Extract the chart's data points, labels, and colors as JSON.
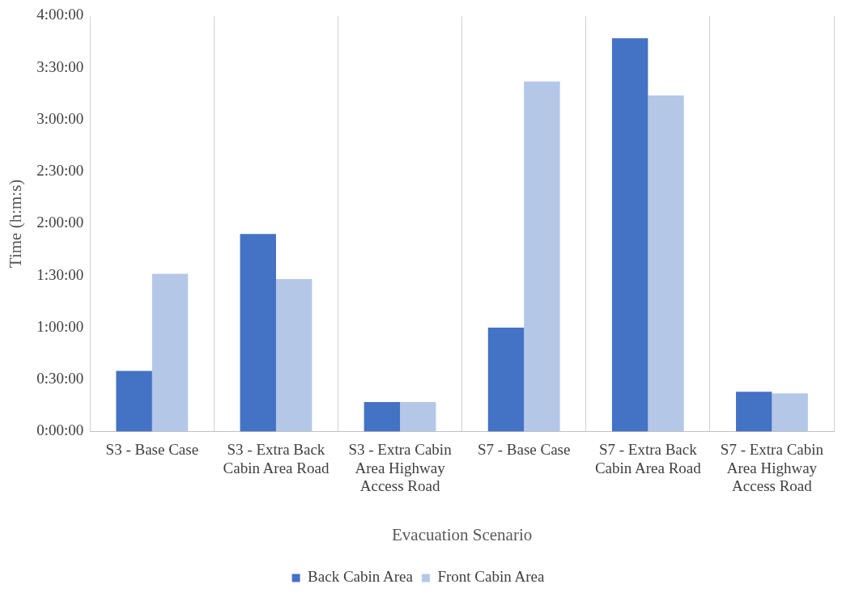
{
  "chart_data": {
    "type": "bar",
    "xlabel": "Evacuation Scenario",
    "ylabel": "Time (h:m:s)",
    "categories": [
      "S3 - Base Case",
      "S3 - Extra Back Cabin Area Road",
      "S3 - Extra Cabin Area Highway Access Road",
      "S7 - Base Case",
      "S7 - Extra Back Cabin Area Road",
      "S7 - Extra Cabin Area Highway Access Road"
    ],
    "series": [
      {
        "name": "Back Cabin Area",
        "color": "#4472c4",
        "values": [
          35,
          114,
          17,
          60,
          227,
          23
        ]
      },
      {
        "name": "Front Cabin Area",
        "color": "#b4c7e7",
        "values": [
          91,
          88,
          17,
          202,
          194,
          22
        ]
      }
    ],
    "ylim": [
      0,
      240
    ],
    "yticks": [
      {
        "value": 0,
        "label": "0:00:00"
      },
      {
        "value": 30,
        "label": "0:30:00"
      },
      {
        "value": 60,
        "label": "1:00:00"
      },
      {
        "value": 90,
        "label": "1:30:00"
      },
      {
        "value": 120,
        "label": "2:00:00"
      },
      {
        "value": 150,
        "label": "2:30:00"
      },
      {
        "value": 180,
        "label": "3:00:00"
      },
      {
        "value": 210,
        "label": "3:30:00"
      },
      {
        "value": 240,
        "label": "4:00:00"
      }
    ],
    "grid": "x",
    "legend": "bottom"
  }
}
